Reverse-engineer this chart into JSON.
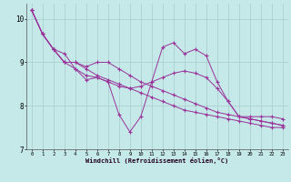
{
  "xlabel": "Windchill (Refroidissement éolien,°C)",
  "ylabel": "",
  "background_color": "#c5e8e8",
  "line_color": "#993399",
  "grid_color": "#a8cbcb",
  "xlim": [
    -0.5,
    23.5
  ],
  "ylim": [
    7.0,
    10.35
  ],
  "yticks": [
    7,
    8,
    9,
    10
  ],
  "xticks": [
    0,
    1,
    2,
    3,
    4,
    5,
    6,
    7,
    8,
    9,
    10,
    11,
    12,
    13,
    14,
    15,
    16,
    17,
    18,
    19,
    20,
    21,
    22,
    23
  ],
  "lines": [
    [
      10.2,
      9.65,
      9.3,
      9.2,
      8.85,
      8.7,
      8.65,
      8.55,
      7.8,
      7.4,
      7.75,
      8.55,
      9.35,
      9.45,
      9.2,
      9.3,
      9.15,
      8.55,
      8.1,
      7.75,
      7.75,
      7.75,
      7.75,
      7.7
    ],
    [
      10.2,
      9.65,
      9.3,
      9.0,
      9.0,
      8.9,
      9.0,
      9.0,
      8.85,
      8.7,
      8.55,
      8.45,
      8.35,
      8.25,
      8.15,
      8.05,
      7.95,
      7.85,
      7.8,
      7.75,
      7.7,
      7.65,
      7.6,
      7.55
    ],
    [
      10.2,
      9.65,
      9.3,
      9.0,
      9.0,
      8.85,
      8.7,
      8.6,
      8.5,
      8.4,
      8.3,
      8.2,
      8.1,
      8.0,
      7.9,
      7.85,
      7.8,
      7.75,
      7.7,
      7.65,
      7.6,
      7.55,
      7.5,
      7.5
    ],
    [
      10.2,
      9.65,
      9.3,
      9.0,
      8.85,
      8.6,
      8.65,
      8.55,
      8.45,
      8.4,
      8.45,
      8.55,
      8.65,
      8.75,
      8.8,
      8.75,
      8.65,
      8.4,
      8.1,
      7.75,
      7.7,
      7.65,
      7.6,
      7.55
    ]
  ]
}
